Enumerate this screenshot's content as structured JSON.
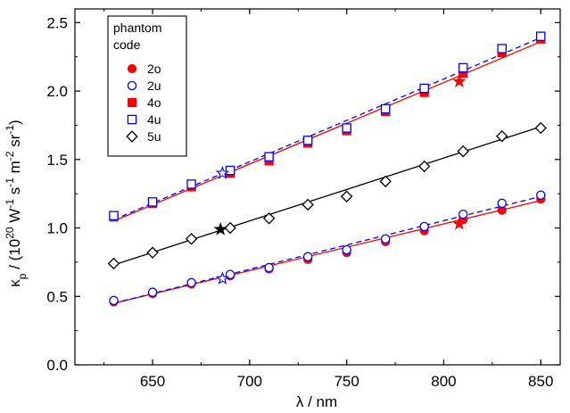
{
  "chart_data": {
    "type": "line",
    "xlabel_main": "λ",
    "xlabel_unit": " / nm",
    "ylabel_parts": [
      "κ",
      "p",
      " / (10",
      "20",
      " W",
      "-1",
      " s",
      "-1",
      " m",
      "-2",
      " sr",
      "-1",
      ")"
    ],
    "xlim": [
      610,
      860
    ],
    "ylim": [
      0.0,
      2.6
    ],
    "x_ticks": [
      650,
      700,
      750,
      800,
      850
    ],
    "y_ticks": [
      "0.0",
      "0.5",
      "1.0",
      "1.5",
      "2.0",
      "2.5"
    ],
    "x_tick_labels": [
      "650",
      "700",
      "750",
      "800",
      "850"
    ],
    "legend_title_lines": [
      "phantom",
      "code"
    ],
    "legend_position": "top-left",
    "series": [
      {
        "name": "2o",
        "color": "#ff0000",
        "marker": "circle-filled",
        "x": [
          630,
          650,
          670,
          690,
          710,
          730,
          750,
          770,
          790,
          810,
          830,
          850
        ],
        "y": [
          0.46,
          0.52,
          0.59,
          0.65,
          0.7,
          0.77,
          0.82,
          0.9,
          0.98,
          1.06,
          1.13,
          1.21
        ],
        "fit": {
          "x0": 630,
          "y0": 0.45,
          "x1": 850,
          "y1": 1.2,
          "dash": false
        },
        "star": {
          "x": 808,
          "y": 1.03,
          "filled": true
        }
      },
      {
        "name": "2u",
        "color": "#0000ff",
        "marker": "circle-open",
        "x": [
          630,
          650,
          670,
          690,
          710,
          730,
          750,
          770,
          790,
          810,
          830,
          850
        ],
        "y": [
          0.47,
          0.53,
          0.6,
          0.66,
          0.71,
          0.79,
          0.84,
          0.92,
          1.01,
          1.1,
          1.18,
          1.24
        ],
        "fit": {
          "x0": 630,
          "y0": 0.45,
          "x1": 850,
          "y1": 1.23,
          "dash": true
        },
        "star": {
          "x": 686,
          "y": 0.63,
          "filled": false
        }
      },
      {
        "name": "4o",
        "color": "#ff0000",
        "marker": "square-filled",
        "x": [
          630,
          650,
          670,
          690,
          710,
          730,
          750,
          770,
          790,
          810,
          830,
          850
        ],
        "y": [
          1.08,
          1.18,
          1.3,
          1.4,
          1.49,
          1.62,
          1.71,
          1.85,
          1.99,
          2.13,
          2.28,
          2.38
        ],
        "fit": {
          "x0": 630,
          "y0": 1.05,
          "x1": 850,
          "y1": 2.36,
          "dash": false
        },
        "star": {
          "x": 808,
          "y": 2.07,
          "filled": true
        }
      },
      {
        "name": "4u",
        "color": "#0000ff",
        "marker": "square-open",
        "x": [
          630,
          650,
          670,
          690,
          710,
          730,
          750,
          770,
          790,
          810,
          830,
          850
        ],
        "y": [
          1.09,
          1.19,
          1.32,
          1.42,
          1.52,
          1.64,
          1.73,
          1.87,
          2.02,
          2.17,
          2.31,
          2.4
        ],
        "fit": {
          "x0": 630,
          "y0": 1.06,
          "x1": 850,
          "y1": 2.39,
          "dash": true
        },
        "star": {
          "x": 686,
          "y": 1.4,
          "filled": false
        }
      },
      {
        "name": "5u",
        "color": "#000000",
        "marker": "diamond-open",
        "x": [
          630,
          650,
          670,
          690,
          710,
          730,
          750,
          770,
          790,
          810,
          830,
          850
        ],
        "y": [
          0.74,
          0.82,
          0.92,
          1.0,
          1.07,
          1.17,
          1.23,
          1.34,
          1.45,
          1.56,
          1.67,
          1.73
        ],
        "fit": {
          "x0": 630,
          "y0": 0.73,
          "x1": 850,
          "y1": 1.74,
          "dash": false
        },
        "star": {
          "x": 685,
          "y": 0.99,
          "filled": true
        }
      }
    ]
  }
}
